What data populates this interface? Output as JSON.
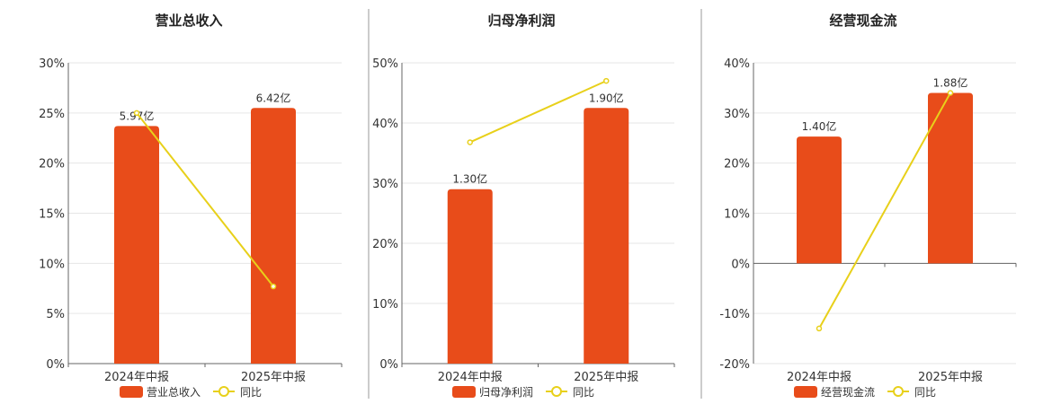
{
  "colors": {
    "bar": "#E84C1A",
    "line": "#E8D01A",
    "line_marker_fill": "#ffffff"
  },
  "legend": {
    "line_label": "同比"
  },
  "chart_data": [
    {
      "type": "bar",
      "title": "营业总收入",
      "categories": [
        "2024年中报",
        "2025年中报"
      ],
      "y_ticks": [
        "30%",
        "25%",
        "20%",
        "15%",
        "10%",
        "5%",
        "0%"
      ],
      "ylim": [
        0,
        30
      ],
      "series": [
        {
          "name": "营业总收入",
          "kind": "bar",
          "values": [
            23.7,
            25.5
          ],
          "labels": [
            "5.97亿",
            "6.42亿"
          ]
        },
        {
          "name": "同比",
          "kind": "line",
          "values": [
            25.0,
            7.7
          ]
        }
      ]
    },
    {
      "type": "bar",
      "title": "归母净利润",
      "categories": [
        "2024年中报",
        "2025年中报"
      ],
      "y_ticks": [
        "50%",
        "40%",
        "30%",
        "20%",
        "10%",
        "0%"
      ],
      "ylim": [
        0,
        50
      ],
      "series": [
        {
          "name": "归母净利润",
          "kind": "bar",
          "values": [
            29.0,
            42.5
          ],
          "labels": [
            "1.30亿",
            "1.90亿"
          ]
        },
        {
          "name": "同比",
          "kind": "line",
          "values": [
            36.8,
            47.0
          ]
        }
      ]
    },
    {
      "type": "bar",
      "title": "经营现金流",
      "categories": [
        "2024年中报",
        "2025年中报"
      ],
      "y_ticks": [
        "40%",
        "30%",
        "20%",
        "10%",
        "0%",
        "-10%",
        "-20%"
      ],
      "ylim": [
        -20,
        40
      ],
      "series": [
        {
          "name": "经营现金流",
          "kind": "bar",
          "values": [
            25.3,
            34.0
          ],
          "labels": [
            "1.40亿",
            "1.88亿"
          ]
        },
        {
          "name": "同比",
          "kind": "line",
          "values": [
            -13.0,
            34.0
          ]
        }
      ]
    }
  ]
}
